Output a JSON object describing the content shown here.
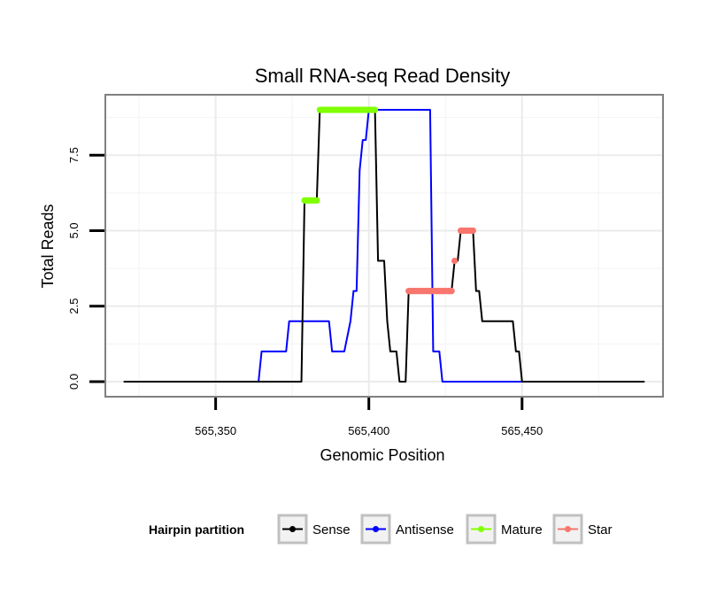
{
  "chart_data": {
    "type": "line",
    "title": "Small RNA-seq Read Density",
    "xlabel": "Genomic Position",
    "ylabel": "Total Reads",
    "xlim": [
      565314,
      565496
    ],
    "ylim": [
      -0.5,
      9.5
    ],
    "x_ticks": [
      565350,
      565400,
      565450
    ],
    "x_tick_labels": [
      "565,350",
      "565,400",
      "565,450"
    ],
    "y_ticks": [
      0,
      2.5,
      5,
      7.5
    ],
    "y_tick_labels": [
      "0.0",
      "2.5",
      "5.0",
      "7.5"
    ],
    "grid": true,
    "legend_position": "bottom",
    "legend_title": "Hairpin partition",
    "series": [
      {
        "name": "Sense",
        "color": "#000000",
        "style": "line",
        "points": [
          [
            565320,
            0
          ],
          [
            565378,
            0
          ],
          [
            565379,
            6
          ],
          [
            565383,
            6
          ],
          [
            565384,
            9
          ],
          [
            565402,
            9
          ],
          [
            565403,
            4
          ],
          [
            565405,
            4
          ],
          [
            565406,
            2
          ],
          [
            565407,
            1
          ],
          [
            565409,
            1
          ],
          [
            565410,
            0
          ],
          [
            565412,
            0
          ],
          [
            565413,
            3
          ],
          [
            565427,
            3
          ],
          [
            565428,
            4
          ],
          [
            565429,
            4
          ],
          [
            565430,
            5
          ],
          [
            565434,
            5
          ],
          [
            565435,
            3
          ],
          [
            565436,
            3
          ],
          [
            565437,
            2
          ],
          [
            565447,
            2
          ],
          [
            565448,
            1
          ],
          [
            565449,
            1
          ],
          [
            565450,
            0
          ],
          [
            565490,
            0
          ]
        ]
      },
      {
        "name": "Antisense",
        "color": "#0000ff",
        "style": "line",
        "points": [
          [
            565320,
            0
          ],
          [
            565364,
            0
          ],
          [
            565365,
            1
          ],
          [
            565373,
            1
          ],
          [
            565374,
            2
          ],
          [
            565387,
            2
          ],
          [
            565388,
            1
          ],
          [
            565392,
            1
          ],
          [
            565394,
            2
          ],
          [
            565395,
            3
          ],
          [
            565396,
            3
          ],
          [
            565397,
            7
          ],
          [
            565398,
            8
          ],
          [
            565399,
            8
          ],
          [
            565400,
            9
          ],
          [
            565420,
            9
          ],
          [
            565421,
            1
          ],
          [
            565423,
            1
          ],
          [
            565424,
            0
          ],
          [
            565453,
            0
          ]
        ]
      },
      {
        "name": "Mature",
        "color": "#80ff00",
        "style": "points",
        "points": [
          [
            565379,
            6
          ],
          [
            565380,
            6
          ],
          [
            565381,
            6
          ],
          [
            565382,
            6
          ],
          [
            565383,
            6
          ],
          [
            565384,
            9
          ],
          [
            565385,
            9
          ],
          [
            565386,
            9
          ],
          [
            565387,
            9
          ],
          [
            565388,
            9
          ],
          [
            565389,
            9
          ],
          [
            565390,
            9
          ],
          [
            565391,
            9
          ],
          [
            565392,
            9
          ],
          [
            565393,
            9
          ],
          [
            565394,
            9
          ],
          [
            565395,
            9
          ],
          [
            565396,
            9
          ],
          [
            565397,
            9
          ],
          [
            565398,
            9
          ],
          [
            565399,
            9
          ],
          [
            565400,
            9
          ],
          [
            565401,
            9
          ],
          [
            565402,
            9
          ]
        ]
      },
      {
        "name": "Star",
        "color": "#f8766d",
        "style": "points",
        "points": [
          [
            565413,
            3
          ],
          [
            565414,
            3
          ],
          [
            565415,
            3
          ],
          [
            565416,
            3
          ],
          [
            565417,
            3
          ],
          [
            565418,
            3
          ],
          [
            565419,
            3
          ],
          [
            565420,
            3
          ],
          [
            565421,
            3
          ],
          [
            565422,
            3
          ],
          [
            565423,
            3
          ],
          [
            565424,
            3
          ],
          [
            565425,
            3
          ],
          [
            565426,
            3
          ],
          [
            565427,
            3
          ],
          [
            565428,
            4
          ],
          [
            565430,
            5
          ],
          [
            565431,
            5
          ],
          [
            565432,
            5
          ],
          [
            565433,
            5
          ],
          [
            565434,
            5
          ]
        ]
      }
    ]
  }
}
